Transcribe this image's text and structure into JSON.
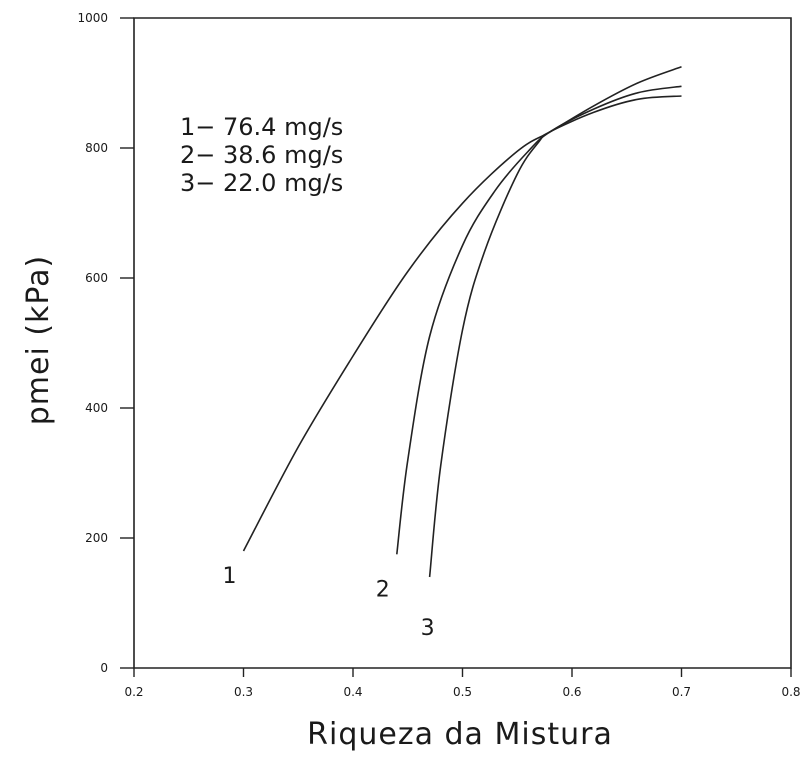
{
  "chart_data": {
    "type": "line",
    "xlabel": "Riqueza da Mistura",
    "ylabel": "pmei (kPa)",
    "xlim": [
      0.2,
      0.8
    ],
    "ylim": [
      0,
      1000
    ],
    "x_ticks": [
      0.2,
      0.3,
      0.4,
      0.5,
      0.6,
      0.7,
      0.8
    ],
    "x_tick_labels": [
      "0.2",
      "0.3",
      "0.4",
      "0.5",
      "0.6",
      "0.7",
      "0.8"
    ],
    "y_ticks": [
      0,
      200,
      400,
      600,
      800,
      1000
    ],
    "y_tick_labels": [
      "0",
      "200",
      "400",
      "600",
      "800",
      "1000"
    ],
    "grid": false,
    "legend_entries": [
      "1− 76.4 mg/s",
      "2− 38.6 mg/s",
      "3− 22.0 mg/s"
    ],
    "legend_position": "top-left",
    "series": [
      {
        "label": "1",
        "x": [
          0.3,
          0.35,
          0.4,
          0.45,
          0.5,
          0.55,
          0.58,
          0.62,
          0.66,
          0.7
        ],
        "y": [
          180,
          340,
          480,
          610,
          715,
          795,
          825,
          865,
          900,
          925
        ]
      },
      {
        "label": "2",
        "x": [
          0.44,
          0.45,
          0.47,
          0.5,
          0.53,
          0.56,
          0.58,
          0.62,
          0.66,
          0.7
        ],
        "y": [
          175,
          320,
          510,
          650,
          735,
          795,
          825,
          860,
          885,
          895
        ]
      },
      {
        "label": "3",
        "x": [
          0.47,
          0.48,
          0.5,
          0.52,
          0.55,
          0.57,
          0.58,
          0.62,
          0.66,
          0.7
        ],
        "y": [
          140,
          310,
          520,
          640,
          760,
          810,
          825,
          855,
          875,
          880
        ]
      }
    ]
  }
}
